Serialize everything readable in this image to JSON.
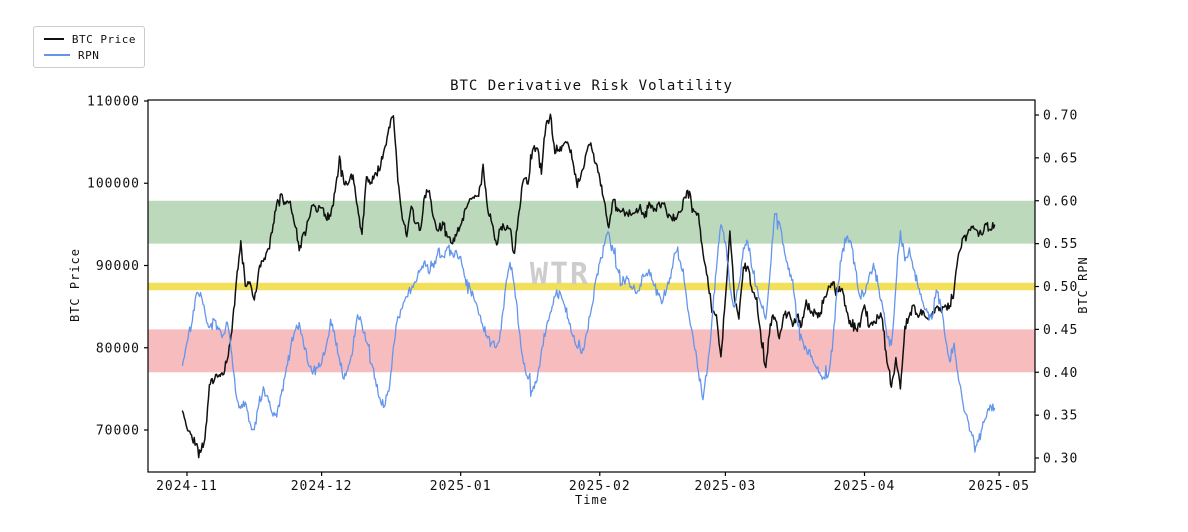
{
  "figure": {
    "title": "BTC Derivative Risk Volatility",
    "watermark": "WTR",
    "xlabel": "Time",
    "ylabel_left": "BTC Price",
    "ylabel_right": "BTC RPN"
  },
  "legend": {
    "position": "upper-left-outside",
    "items": [
      {
        "label": "BTC Price",
        "color": "#111111"
      },
      {
        "label": "RPN",
        "color": "#6495ed"
      }
    ]
  },
  "colors": {
    "btc_line": "#111111",
    "rpn_line": "#6495ed",
    "green_band": "#bcd9bb",
    "red_band": "#f7bcbe",
    "yellow_line": "#f3e05a",
    "watermark": "#cdcdcd",
    "spine": "#000000"
  },
  "chart_data": {
    "type": "line",
    "title": "BTC Derivative Risk Volatility",
    "xlabel": "Time",
    "ylabel_left": "BTC Price",
    "ylabel_right": "BTC RPN",
    "grid": false,
    "legend_position": "upper left",
    "x_ticks": [
      {
        "label": "2024-11",
        "day": 0
      },
      {
        "label": "2024-12",
        "day": 30
      },
      {
        "label": "2025-01",
        "day": 61
      },
      {
        "label": "2025-02",
        "day": 92
      },
      {
        "label": "2025-03",
        "day": 120
      },
      {
        "label": "2025-04",
        "day": 151
      },
      {
        "label": "2025-05",
        "day": 181
      }
    ],
    "y_ticks_left": [
      {
        "label": "70000",
        "value": 70000
      },
      {
        "label": "80000",
        "value": 80000
      },
      {
        "label": "90000",
        "value": 90000
      },
      {
        "label": "100000",
        "value": 100000
      },
      {
        "label": "110000",
        "value": 110000
      }
    ],
    "y_ticks_right": [
      {
        "label": "0.30",
        "value": 0.3
      },
      {
        "label": "0.35",
        "value": 0.35
      },
      {
        "label": "0.40",
        "value": 0.4
      },
      {
        "label": "0.45",
        "value": 0.45
      },
      {
        "label": "0.50",
        "value": 0.5
      },
      {
        "label": "0.55",
        "value": 0.55
      },
      {
        "label": "0.60",
        "value": 0.6
      },
      {
        "label": "0.65",
        "value": 0.65
      },
      {
        "label": "0.70",
        "value": 0.7
      }
    ],
    "xlim_days": [
      -8.69,
      189.0
    ],
    "ylim_left": [
      64894,
      110121
    ],
    "ylim_right": [
      0.2837,
      0.7175
    ],
    "bands": [
      {
        "name": "high-risk-band",
        "axis": "right",
        "from": 0.55,
        "to": 0.6,
        "color": "#bcd9bb"
      },
      {
        "name": "low-risk-band",
        "axis": "right",
        "from": 0.4,
        "to": 0.45,
        "color": "#f7bcbe"
      }
    ],
    "threshold": {
      "name": "neutral-line",
      "axis": "right",
      "value": 0.5,
      "color": "#f3e05a",
      "width": 7.5
    },
    "watermark": "WTR",
    "series": [
      {
        "name": "BTC Price",
        "axis": "left",
        "color": "#111111",
        "linewidth": 1.5,
        "start_day": -1,
        "interval_days": 1,
        "values": [
          72300,
          70200,
          69400,
          68300,
          67300,
          68900,
          75500,
          75900,
          76500,
          76700,
          78600,
          82000,
          88000,
          93000,
          87500,
          88000,
          85800,
          89500,
          90500,
          92000,
          94000,
          97500,
          98700,
          97500,
          97800,
          94900,
          91800,
          94000,
          95500,
          97300,
          96500,
          97000,
          95700,
          96000,
          99000,
          103300,
          99900,
          100000,
          101000,
          97200,
          93800,
          100800,
          100100,
          101300,
          101600,
          104200,
          106800,
          108200,
          100200,
          95600,
          93500,
          97200,
          95100,
          94300,
          98500,
          99100,
          95700,
          94200,
          95300,
          93500,
          92700,
          93600,
          94900,
          96900,
          98100,
          98200,
          98400,
          102300,
          96900,
          95100,
          92500,
          94700,
          94300,
          94500,
          91500,
          96500,
          100400,
          99900,
          104000,
          104300,
          101100,
          107000,
          108400,
          103600,
          103900,
          104800,
          104700,
          102600,
          99500,
          101500,
          103700,
          104900,
          102400,
          100600,
          97800,
          94600,
          98000,
          96600,
          96600,
          96500,
          96100,
          96500,
          97400,
          95800,
          97700,
          96600,
          97500,
          97600,
          96100,
          95700,
          95600,
          96500,
          98300,
          99000,
          96600,
          96300,
          91500,
          88700,
          84300,
          84000,
          78900,
          86000,
          94200,
          86100,
          83500,
          89800,
          89900,
          86800,
          86100,
          80700,
          77600,
          82900,
          83700,
          81100,
          84000,
          84300,
          82600,
          84000,
          82700,
          85800,
          84200,
          84400,
          83800,
          86100,
          87500,
          88000,
          86900,
          87200,
          84400,
          82600,
          82300,
          82500,
          85200,
          82500,
          83200,
          83800,
          83500,
          78300,
          75200,
          78800,
          75000,
          82600,
          83900,
          85200,
          83700,
          84500,
          83600,
          84000,
          84900,
          84500,
          85200,
          85100,
          87100,
          91500,
          93400,
          93900,
          94600,
          94300,
          93800,
          95100,
          94400,
          94900
        ]
      },
      {
        "name": "RPN",
        "axis": "right",
        "color": "#6495ed",
        "linewidth": 1.3,
        "start_day": -1,
        "interval_days": 1,
        "values": [
          0.408,
          0.435,
          0.455,
          0.49,
          0.493,
          0.47,
          0.452,
          0.462,
          0.45,
          0.443,
          0.458,
          0.42,
          0.372,
          0.358,
          0.365,
          0.342,
          0.333,
          0.362,
          0.383,
          0.372,
          0.352,
          0.348,
          0.374,
          0.4,
          0.425,
          0.448,
          0.458,
          0.432,
          0.41,
          0.398,
          0.405,
          0.41,
          0.43,
          0.462,
          0.44,
          0.415,
          0.392,
          0.408,
          0.428,
          0.467,
          0.455,
          0.435,
          0.41,
          0.392,
          0.37,
          0.36,
          0.378,
          0.43,
          0.465,
          0.475,
          0.488,
          0.497,
          0.505,
          0.52,
          0.53,
          0.515,
          0.522,
          0.544,
          0.535,
          0.546,
          0.538,
          0.542,
          0.535,
          0.51,
          0.5,
          0.485,
          0.468,
          0.452,
          0.44,
          0.435,
          0.43,
          0.45,
          0.5,
          0.528,
          0.5,
          0.45,
          0.41,
          0.392,
          0.378,
          0.39,
          0.425,
          0.448,
          0.47,
          0.488,
          0.495,
          0.48,
          0.462,
          0.442,
          0.428,
          0.422,
          0.445,
          0.47,
          0.505,
          0.528,
          0.548,
          0.563,
          0.542,
          0.52,
          0.502,
          0.512,
          0.5,
          0.492,
          0.502,
          0.512,
          0.52,
          0.502,
          0.49,
          0.482,
          0.5,
          0.52,
          0.54,
          0.528,
          0.5,
          0.462,
          0.432,
          0.4,
          0.368,
          0.405,
          0.46,
          0.52,
          0.572,
          0.552,
          0.5,
          0.476,
          0.502,
          0.545,
          0.552,
          0.52,
          0.5,
          0.478,
          0.462,
          0.52,
          0.585,
          0.575,
          0.548,
          0.52,
          0.508,
          0.458,
          0.44,
          0.428,
          0.418,
          0.408,
          0.4,
          0.394,
          0.398,
          0.44,
          0.5,
          0.54,
          0.558,
          0.552,
          0.52,
          0.488,
          0.492,
          0.512,
          0.527,
          0.502,
          0.478,
          0.442,
          0.432,
          0.5,
          0.565,
          0.53,
          0.545,
          0.52,
          0.498,
          0.482,
          0.47,
          0.462,
          0.496,
          0.478,
          0.44,
          0.412,
          0.434,
          0.39,
          0.362,
          0.345,
          0.326,
          0.315,
          0.332,
          0.346,
          0.362,
          0.358
        ]
      }
    ]
  }
}
